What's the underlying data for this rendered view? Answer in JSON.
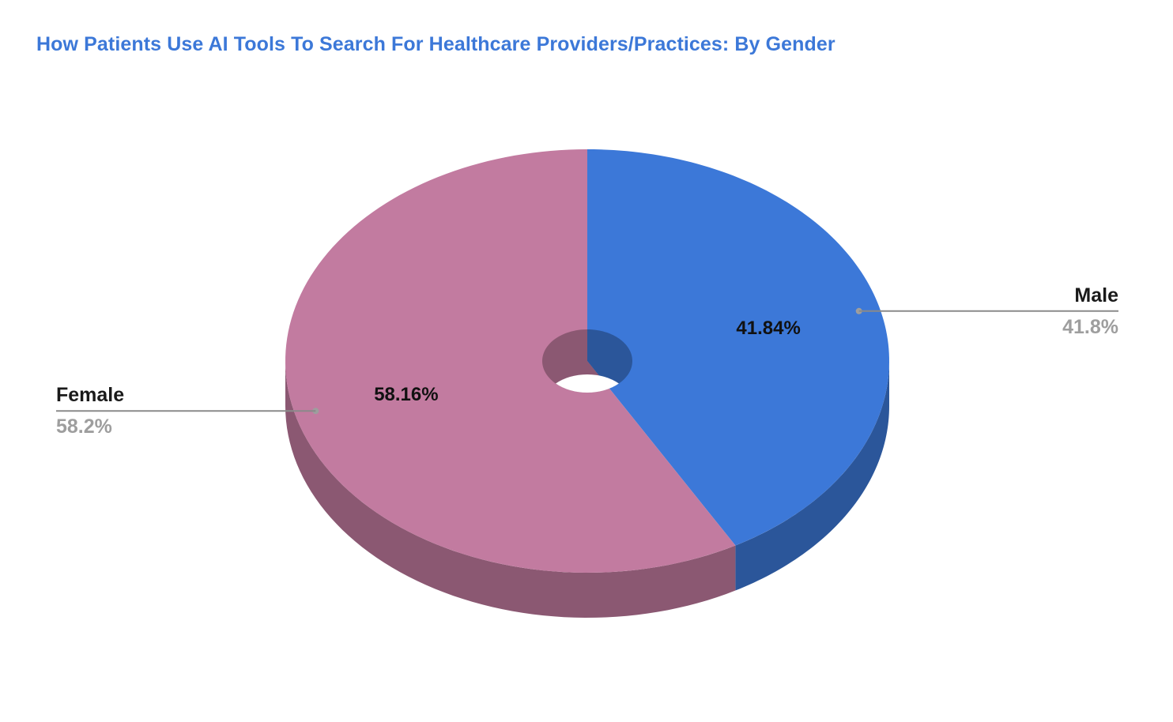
{
  "chart_data": {
    "type": "pie",
    "title": "How Patients Use AI Tools To Search For Healthcare Providers/Practices: By Gender",
    "categories": [
      "Male",
      "Female"
    ],
    "values": [
      41.84,
      58.16
    ],
    "slice_labels": [
      "41.84%",
      "58.16%"
    ],
    "legend_values": [
      "41.8%",
      "58.2%"
    ],
    "colors": {
      "Male": "#3c78d8",
      "Female": "#c27ba0"
    },
    "style": "3d-donut",
    "legend_placement": "callouts"
  }
}
